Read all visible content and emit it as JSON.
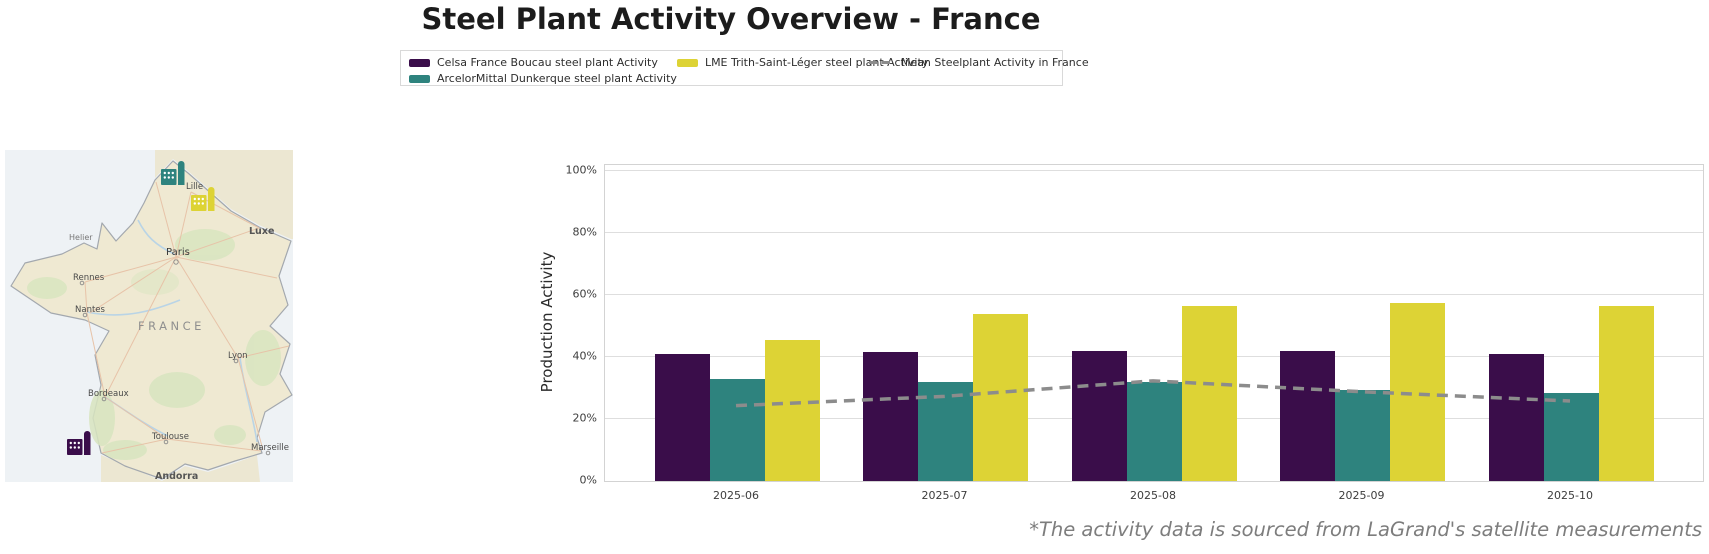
{
  "title": "Steel Plant Activity Overview - France",
  "footnote": "*The activity data is sourced from LaGrand's satellite measurements",
  "legend": {
    "items": [
      {
        "label": "Celsa France Boucau steel plant Activity",
        "color": "#3a0d4a",
        "type": "swatch"
      },
      {
        "label": "ArcelorMittal Dunkerque steel plant Activity",
        "color": "#2e837e",
        "type": "swatch"
      },
      {
        "label": "LME Trith-Saint-Léger steel plant Activity",
        "color": "#ddd335",
        "type": "swatch"
      },
      {
        "label": "Mean Steelplant Activity in France",
        "color": "#8c8c8c",
        "type": "dashed-line"
      }
    ]
  },
  "chart_data": {
    "type": "bar",
    "title": "Steel Plant Activity Overview - France",
    "categories": [
      "2025-06",
      "2025-07",
      "2025-08",
      "2025-09",
      "2025-10"
    ],
    "series": [
      {
        "name": "Celsa France Boucau steel plant Activity",
        "color": "#3a0d4a",
        "values": [
          41,
          41.5,
          42,
          42,
          41
        ]
      },
      {
        "name": "ArcelorMittal Dunkerque steel plant Activity",
        "color": "#2e837e",
        "values": [
          33,
          32,
          32,
          29.5,
          28.5
        ]
      },
      {
        "name": "LME Trith-Saint-Léger steel plant Activity",
        "color": "#ddd335",
        "values": [
          45.5,
          54,
          56.5,
          57.5,
          56.5
        ]
      }
    ],
    "line_series": {
      "name": "Mean Steelplant Activity in France",
      "color": "#8c8c8c",
      "style": "dashed",
      "values": [
        24,
        27,
        32,
        28.5,
        25.5
      ]
    },
    "xlabel": "",
    "ylabel": "Production Activity",
    "yticks": [
      0,
      20,
      40,
      60,
      80,
      100
    ],
    "ytick_format": "percent",
    "ylim": [
      0,
      102
    ],
    "grid": "horizontal",
    "legend_position": "top"
  },
  "map": {
    "country_label": "FRANCE",
    "cities": [
      "Lille",
      "Luxe",
      "Paris",
      "Helier",
      "Rennes",
      "Nantes",
      "Lyon",
      "Bordeaux",
      "Toulouse",
      "Marseille",
      "Andorra"
    ],
    "plants": [
      {
        "name": "ArcelorMittal Dunkerque steel plant",
        "color": "#2e837e"
      },
      {
        "name": "LME Trith-Saint-Léger steel plant",
        "color": "#ddd335"
      },
      {
        "name": "Celsa France Boucau steel plant",
        "color": "#3a0d4a"
      }
    ]
  }
}
